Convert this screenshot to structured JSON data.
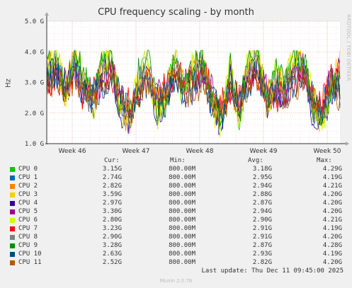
{
  "title": "CPU frequency scaling - by month",
  "side_credit": "RRDTOOL / TOBI OETIKER",
  "ylabel": "Hz",
  "columns": {
    "cur": "Cur:",
    "min": "Min:",
    "avg": "Avg:",
    "max": "Max:"
  },
  "legend": [
    {
      "name": "CPU 0",
      "color": "#00cc00",
      "cur": "3.15G",
      "min": "800.00M",
      "avg": "3.18G",
      "max": "4.29G"
    },
    {
      "name": "CPU 1",
      "color": "#0066b3",
      "cur": "2.74G",
      "min": "800.00M",
      "avg": "2.95G",
      "max": "4.19G"
    },
    {
      "name": "CPU 2",
      "color": "#ff8000",
      "cur": "2.82G",
      "min": "800.00M",
      "avg": "2.94G",
      "max": "4.21G"
    },
    {
      "name": "CPU 3",
      "color": "#ffcc00",
      "cur": "3.59G",
      "min": "800.00M",
      "avg": "2.88G",
      "max": "4.20G"
    },
    {
      "name": "CPU 4",
      "color": "#330099",
      "cur": "2.97G",
      "min": "800.00M",
      "avg": "2.87G",
      "max": "4.20G"
    },
    {
      "name": "CPU 5",
      "color": "#990099",
      "cur": "3.30G",
      "min": "800.00M",
      "avg": "2.94G",
      "max": "4.20G"
    },
    {
      "name": "CPU 6",
      "color": "#ccff00",
      "cur": "2.80G",
      "min": "800.00M",
      "avg": "2.90G",
      "max": "4.21G"
    },
    {
      "name": "CPU 7",
      "color": "#ff0000",
      "cur": "3.23G",
      "min": "800.00M",
      "avg": "2.91G",
      "max": "4.19G"
    },
    {
      "name": "CPU 8",
      "color": "#808080",
      "cur": "2.90G",
      "min": "800.00M",
      "avg": "2.91G",
      "max": "4.20G"
    },
    {
      "name": "CPU 9",
      "color": "#008f00",
      "cur": "3.28G",
      "min": "800.00M",
      "avg": "2.87G",
      "max": "4.28G"
    },
    {
      "name": "CPU 10",
      "color": "#00487d",
      "cur": "2.63G",
      "min": "800.00M",
      "avg": "2.93G",
      "max": "4.19G"
    },
    {
      "name": "CPU 11",
      "color": "#b35a00",
      "cur": "2.52G",
      "min": "800.00M",
      "avg": "2.82G",
      "max": "4.20G"
    }
  ],
  "last_update": "Last update: Thu Dec 11 09:45:00 2025",
  "munin_version": "Munin 2.0.76",
  "chart_data": {
    "type": "line",
    "title": "CPU frequency scaling - by month",
    "ylabel": "Hz",
    "xlabel": "",
    "y_ticks": [
      "1.0 G",
      "2.0 G",
      "3.0 G",
      "4.0 G",
      "5.0 G"
    ],
    "y_tick_values": [
      1.0,
      2.0,
      3.0,
      4.0,
      5.0
    ],
    "ylim": [
      1.0,
      5.0
    ],
    "x_ticks": [
      "Week 46",
      "Week 47",
      "Week 48",
      "Week 49",
      "Week 50"
    ],
    "xlim_weeks": [
      45.6,
      50.2
    ],
    "grid": true,
    "series_names": [
      "CPU 0",
      "CPU 1",
      "CPU 2",
      "CPU 3",
      "CPU 4",
      "CPU 5",
      "CPU 6",
      "CPU 7",
      "CPU 8",
      "CPU 9",
      "CPU 10",
      "CPU 11"
    ],
    "envelope_note_free": null,
    "series": [
      {
        "name": "CPU 0",
        "values": [
          3.4,
          3.8,
          2.6,
          3.9,
          3.0,
          2.4,
          3.5,
          3.9,
          2.2,
          1.8,
          3.0,
          3.6,
          2.1,
          2.6,
          3.8,
          2.8,
          3.4,
          3.9,
          2.5,
          2.0,
          3.3,
          1.9,
          3.5,
          3.8,
          2.4,
          3.1,
          2.9,
          3.6,
          3.8,
          2.3,
          1.8,
          2.9,
          3.3
        ]
      },
      {
        "name": "CPU 1",
        "values": [
          3.1,
          3.5,
          2.9,
          3.6,
          2.7,
          2.6,
          3.2,
          3.6,
          2.5,
          1.9,
          2.7,
          3.3,
          2.4,
          2.4,
          3.5,
          2.6,
          3.1,
          3.7,
          2.3,
          1.8,
          3.0,
          2.2,
          3.6,
          3.5,
          2.6,
          2.9,
          2.6,
          3.3,
          3.6,
          2.1,
          2.0,
          3.1,
          2.7
        ]
      },
      {
        "name": "CPU 2",
        "values": [
          3.3,
          3.7,
          2.7,
          3.8,
          2.9,
          2.3,
          3.4,
          3.8,
          2.3,
          1.7,
          2.9,
          3.5,
          2.2,
          2.7,
          3.7,
          2.9,
          3.3,
          3.8,
          2.6,
          1.9,
          3.2,
          2.0,
          3.4,
          3.7,
          2.5,
          3.0,
          2.8,
          3.5,
          3.7,
          2.2,
          1.9,
          3.0,
          2.8
        ]
      },
      {
        "name": "CPU 3",
        "values": [
          3.5,
          3.9,
          2.8,
          3.7,
          3.1,
          2.5,
          3.6,
          3.7,
          2.4,
          2.0,
          3.1,
          3.7,
          2.3,
          2.5,
          3.9,
          2.7,
          3.5,
          3.6,
          2.4,
          2.1,
          3.4,
          2.1,
          3.7,
          3.9,
          2.3,
          3.2,
          3.0,
          3.7,
          3.9,
          2.4,
          1.7,
          2.8,
          3.6
        ]
      },
      {
        "name": "CPU 4",
        "values": [
          3.0,
          3.6,
          2.5,
          3.5,
          2.8,
          2.2,
          3.3,
          3.5,
          2.1,
          1.6,
          2.8,
          3.4,
          2.0,
          2.3,
          3.6,
          2.5,
          3.2,
          3.5,
          2.2,
          1.7,
          3.1,
          1.8,
          3.3,
          3.6,
          2.2,
          2.8,
          2.7,
          3.4,
          3.5,
          2.0,
          1.6,
          2.7,
          3.0
        ]
      },
      {
        "name": "CPU 5",
        "values": [
          3.2,
          3.4,
          3.0,
          3.4,
          2.6,
          2.7,
          3.1,
          3.4,
          2.6,
          2.1,
          2.6,
          3.2,
          2.5,
          2.8,
          3.4,
          3.0,
          3.0,
          3.4,
          2.7,
          2.2,
          2.9,
          2.3,
          3.2,
          3.4,
          2.7,
          2.7,
          2.5,
          3.2,
          3.4,
          2.5,
          2.1,
          3.2,
          3.3
        ]
      },
      {
        "name": "CPU 6",
        "values": [
          3.6,
          3.9,
          2.4,
          3.9,
          3.2,
          2.1,
          3.7,
          3.9,
          2.0,
          1.8,
          3.2,
          3.8,
          1.9,
          2.6,
          3.8,
          2.4,
          3.6,
          3.9,
          2.1,
          1.6,
          3.5,
          1.7,
          3.8,
          3.8,
          2.1,
          3.3,
          3.1,
          3.8,
          3.8,
          2.6,
          1.5,
          2.6,
          2.8
        ]
      },
      {
        "name": "CPU 7",
        "values": [
          2.9,
          3.3,
          2.8,
          3.3,
          2.5,
          2.8,
          3.0,
          3.3,
          2.7,
          2.3,
          2.5,
          3.1,
          2.6,
          2.9,
          3.3,
          3.1,
          2.9,
          3.3,
          2.8,
          2.3,
          2.8,
          2.4,
          3.1,
          3.3,
          2.8,
          2.6,
          2.4,
          3.1,
          3.3,
          2.7,
          2.2,
          3.3,
          3.2
        ]
      },
      {
        "name": "CPU 8",
        "values": [
          3.3,
          3.6,
          2.6,
          3.6,
          2.9,
          2.4,
          3.3,
          3.6,
          2.3,
          1.9,
          2.9,
          3.4,
          2.2,
          2.5,
          3.6,
          2.7,
          3.3,
          3.6,
          2.4,
          1.9,
          3.1,
          2.0,
          3.4,
          3.6,
          2.4,
          3.0,
          2.8,
          3.4,
          3.6,
          2.3,
          1.8,
          2.9,
          2.9
        ]
      },
      {
        "name": "CPU 9",
        "values": [
          3.7,
          3.8,
          2.7,
          3.8,
          3.3,
          2.3,
          3.8,
          3.8,
          2.2,
          1.7,
          3.3,
          3.9,
          2.1,
          2.4,
          3.7,
          2.6,
          3.7,
          3.8,
          2.3,
          1.8,
          3.6,
          1.9,
          3.9,
          3.7,
          2.3,
          3.4,
          3.2,
          3.9,
          3.9,
          2.2,
          1.7,
          2.7,
          3.3
        ]
      },
      {
        "name": "CPU 10",
        "values": [
          3.0,
          3.2,
          2.9,
          3.2,
          2.7,
          2.6,
          2.9,
          3.2,
          2.5,
          2.0,
          2.7,
          3.0,
          2.4,
          2.7,
          3.2,
          2.8,
          2.8,
          3.2,
          2.6,
          2.0,
          2.7,
          2.2,
          3.0,
          3.2,
          2.6,
          2.7,
          2.6,
          3.0,
          3.2,
          2.5,
          2.0,
          3.1,
          2.6
        ]
      },
      {
        "name": "CPU 11",
        "values": [
          2.8,
          3.1,
          2.7,
          3.1,
          2.6,
          2.5,
          2.8,
          3.1,
          2.4,
          1.9,
          2.6,
          2.9,
          2.3,
          2.6,
          3.1,
          2.7,
          2.7,
          3.1,
          2.5,
          1.9,
          2.6,
          2.1,
          2.9,
          3.1,
          2.5,
          2.6,
          2.5,
          2.9,
          3.1,
          2.4,
          1.9,
          3.0,
          2.5
        ]
      }
    ]
  }
}
